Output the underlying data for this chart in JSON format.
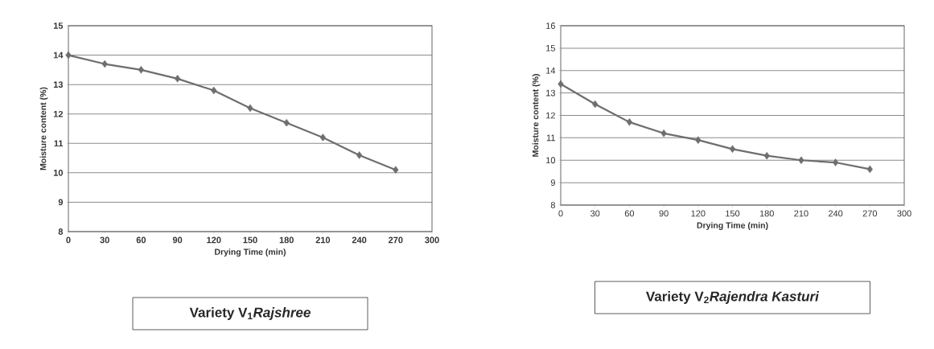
{
  "chart_data": [
    {
      "type": "line",
      "title": "Variety V$_{1}$*Rajshree*",
      "xlabel": "Drying Time (min)",
      "ylabel": "Moisture content (%)",
      "x": [
        0,
        30,
        60,
        90,
        120,
        150,
        180,
        210,
        240,
        270
      ],
      "series": [
        {
          "color": "#6e6e6e",
          "values": [
            14.0,
            13.7,
            13.5,
            13.2,
            12.8,
            12.2,
            11.7,
            11.2,
            10.6,
            10.1
          ]
        }
      ],
      "xlim": [
        0,
        300
      ],
      "ylim": [
        8,
        15
      ],
      "xticks": [
        0,
        30,
        60,
        90,
        120,
        150,
        180,
        210,
        240,
        270,
        300
      ],
      "yticks": [
        8,
        9,
        10,
        11,
        12,
        13,
        14,
        15
      ],
      "grid": "y",
      "marker": "diamond"
    },
    {
      "type": "line",
      "title": "Variety V$_{2}$*Rajendra Kasturi*",
      "xlabel": "Drying Time (min)",
      "ylabel": "Moisture content (%)",
      "x": [
        0,
        30,
        60,
        90,
        120,
        150,
        180,
        210,
        240,
        270
      ],
      "series": [
        {
          "color": "#6e6e6e",
          "values": [
            13.4,
            12.5,
            11.7,
            11.2,
            10.9,
            10.5,
            10.2,
            10.0,
            9.9,
            9.6
          ]
        }
      ],
      "xlim": [
        0,
        300
      ],
      "ylim": [
        8,
        16
      ],
      "xticks": [
        0,
        30,
        60,
        90,
        120,
        150,
        180,
        210,
        240,
        270,
        300
      ],
      "yticks": [
        8,
        9,
        10,
        11,
        12,
        13,
        14,
        15,
        16
      ],
      "grid": "y",
      "marker": "diamond"
    }
  ]
}
